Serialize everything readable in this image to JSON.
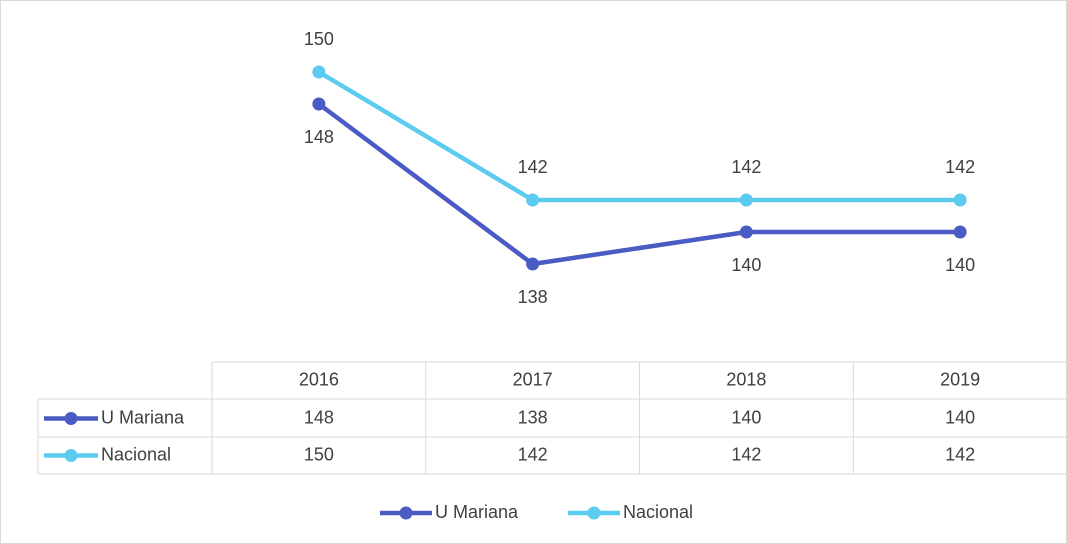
{
  "chart_data": {
    "type": "line",
    "categories": [
      "2016",
      "2017",
      "2018",
      "2019"
    ],
    "series": [
      {
        "name": "U Mariana",
        "color": "#4a5bc4",
        "values": [
          148,
          138,
          140,
          140
        ]
      },
      {
        "name": "Nacional",
        "color": "#5bcbef",
        "values": [
          150,
          142,
          142,
          142
        ]
      }
    ],
    "ylim": [
      132,
      152
    ]
  }
}
